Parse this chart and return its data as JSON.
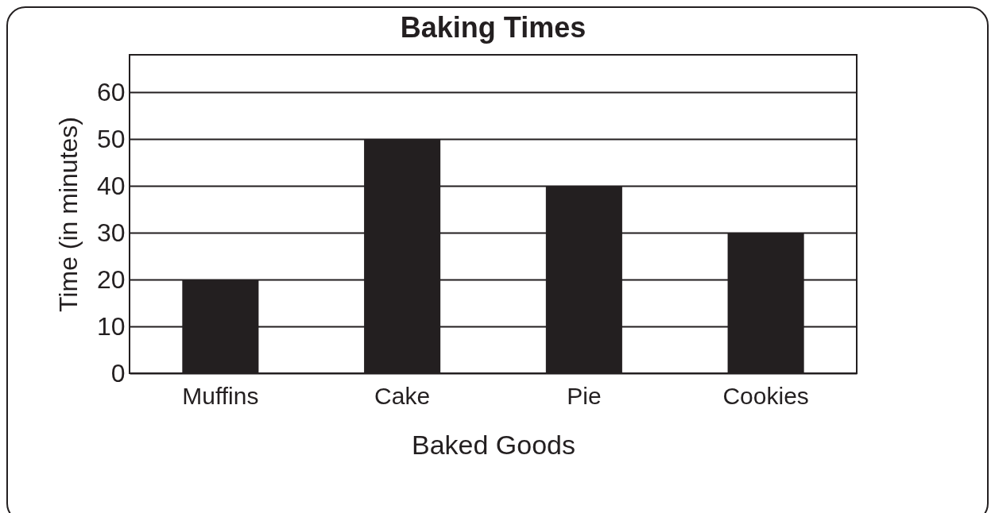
{
  "chart_data": {
    "type": "bar",
    "title": "Baking Times",
    "xlabel": "Baked Goods",
    "ylabel": "Time (in minutes)",
    "categories": [
      "Muffins",
      "Cake",
      "Pie",
      "Cookies"
    ],
    "values": [
      20,
      50,
      40,
      30
    ],
    "color": "#231f20",
    "ylim": [
      0,
      68
    ],
    "yticks": [
      0,
      10,
      20,
      30,
      40,
      50,
      60
    ],
    "grid": "y"
  }
}
